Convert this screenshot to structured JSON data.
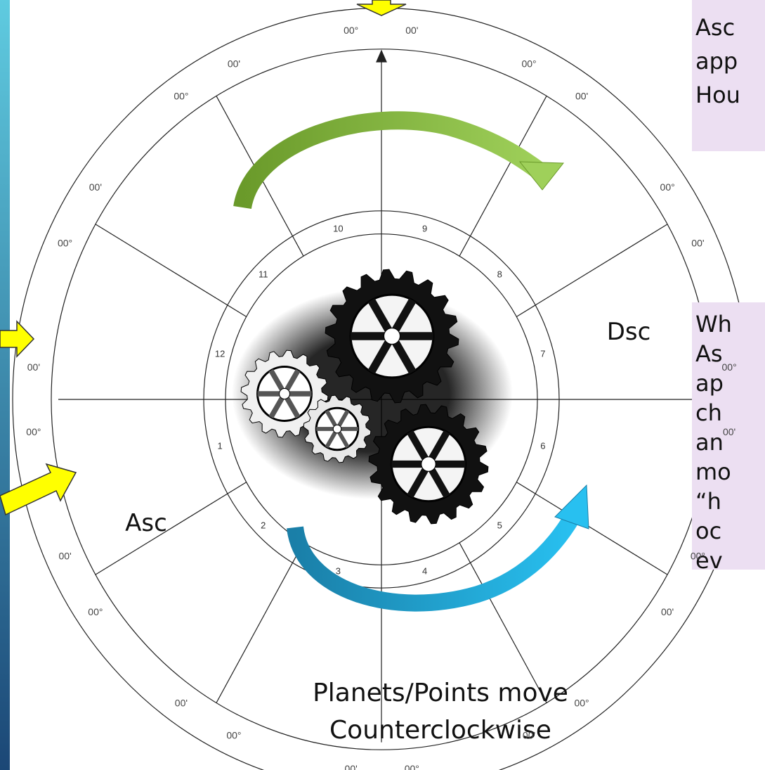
{
  "wheel": {
    "degree_labels": [
      "00°",
      "00'",
      "00°",
      "00'",
      "00°",
      "00'",
      "00°",
      "00'",
      "00°",
      "00'",
      "00°",
      "00'",
      "00°",
      "00'",
      "00°",
      "00'",
      "00°",
      "00'",
      "00°",
      "00'",
      "00°",
      "00'",
      "00°",
      "00'"
    ],
    "house_numbers": [
      "1",
      "2",
      "3",
      "4",
      "5",
      "6",
      "7",
      "8",
      "9",
      "10",
      "11",
      "12"
    ],
    "asc": "Asc",
    "dsc": "Dsc"
  },
  "caption": [
    "Planets/Points move",
    "Counterclockwise"
  ],
  "notes": [
    [
      "Asc",
      "app",
      "Hou"
    ],
    [
      "Wh",
      "As",
      "ap",
      "ch",
      "an",
      "mo",
      "“h",
      "oc",
      "ev"
    ]
  ]
}
